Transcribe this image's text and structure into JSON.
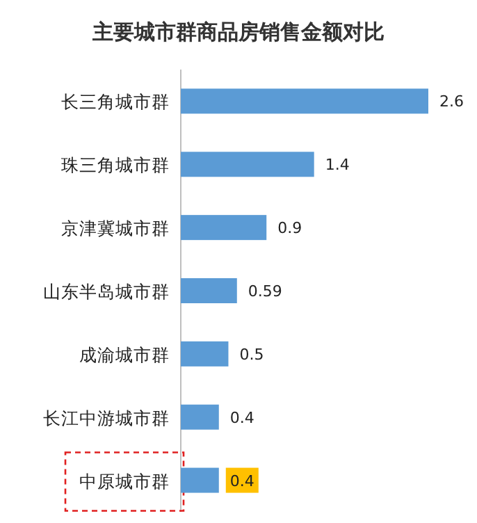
{
  "chart_data": {
    "type": "bar",
    "orientation": "horizontal",
    "title": "主要城市群商品房销售金额对比",
    "categories": [
      "长三角城市群",
      "珠三角城市群",
      "京津冀城市群",
      "山东半岛城市群",
      "成渝城市群",
      "长江中游城市群",
      "中原城市群"
    ],
    "values": [
      2.6,
      1.4,
      0.9,
      0.59,
      0.5,
      0.4,
      0.4
    ],
    "color": "#5b9bd5",
    "data_labels": true
  }
}
